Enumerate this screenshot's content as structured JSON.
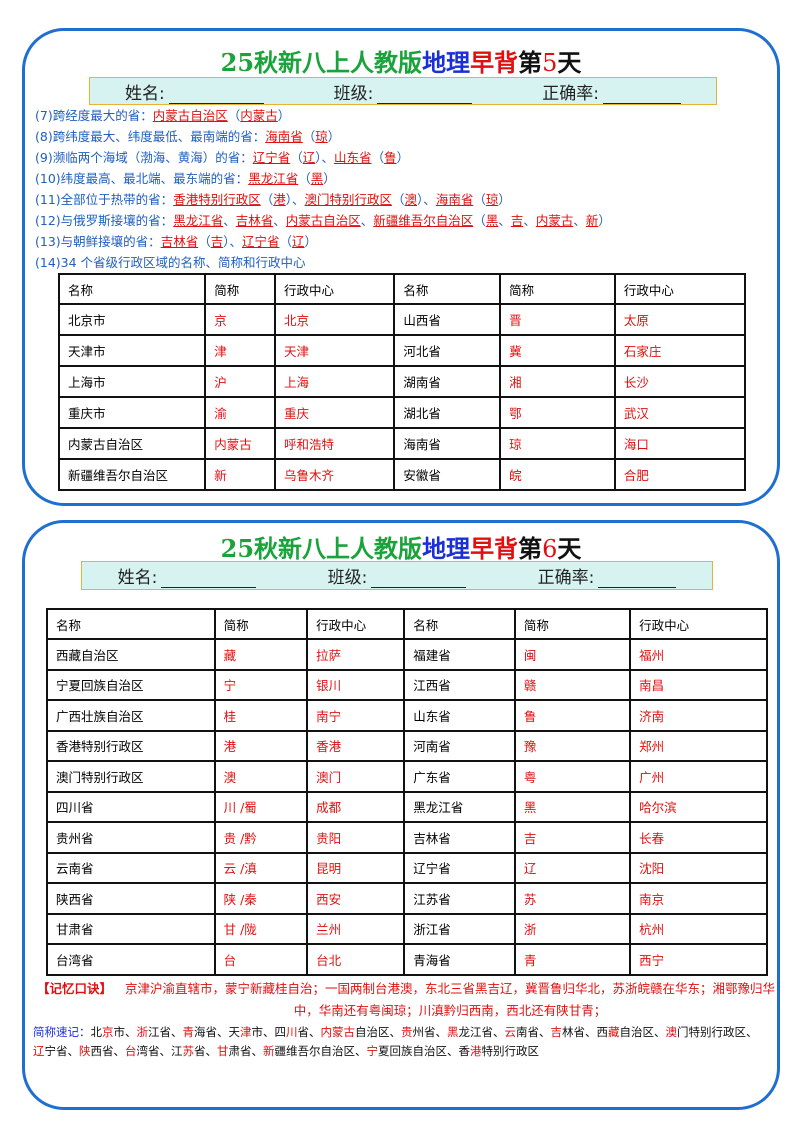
{
  "cards": [
    {
      "title": [
        "25秋新八上人教版",
        "地理",
        "早背",
        "第",
        "5",
        "天"
      ],
      "info": [
        "姓名:",
        "班级:",
        "正确率:"
      ],
      "items": [
        {
          "number": "(7)",
          "parts": [
            "跨经度最大的省：",
            "内蒙古自治区",
            "（",
            "内蒙古",
            "）"
          ]
        },
        {
          "number": "(8)",
          "parts": [
            "跨纬度最大、纬度最低、最南端的省：",
            "海南省",
            "（",
            "琼",
            "）"
          ]
        },
        {
          "number": "(9)",
          "parts": [
            "濒临两个海域（渤海、黄海）的省：",
            "辽宁省",
            "（",
            "辽",
            "）、",
            "山东省",
            "（",
            "鲁",
            "）"
          ]
        },
        {
          "number": "(10)",
          "parts": [
            "纬度最高、最北端、最东端的省：",
            "黑龙江省",
            "（",
            "黑",
            "）"
          ]
        },
        {
          "number": "(11)",
          "parts": [
            "全部位于热带的省：",
            "香港特别行政区",
            "（",
            "港",
            "）、",
            "澳门特别行政区",
            "（",
            "澳",
            "）、",
            "海南省",
            "（",
            "琼",
            "）"
          ]
        },
        {
          "number": "(12)",
          "parts": [
            "与俄罗斯接壤的省：",
            "黑龙江省",
            "、",
            "吉林省",
            "、",
            "内蒙古自治区",
            "、",
            "新疆维吾尔自治区",
            "（",
            "黑",
            "、",
            "吉",
            "、",
            "内蒙古",
            "、",
            "新",
            "）"
          ]
        },
        {
          "number": "(13)",
          "parts": [
            "与朝鲜接壤的省：",
            "吉林省",
            "（",
            "吉",
            "）、",
            "辽宁省",
            "（",
            "辽",
            "）"
          ]
        },
        {
          "number": "(14)",
          "parts": [
            "34 个省级行政区域的名称、简称和行政中心"
          ]
        }
      ],
      "table": {
        "header": [
          "名称",
          "简称",
          "行政中心",
          "名称",
          "简称",
          "行政中心"
        ],
        "rows": [
          [
            "北京市",
            "京",
            "北京",
            "山西省",
            "晋",
            "太原"
          ],
          [
            "天津市",
            "津",
            "天津",
            "河北省",
            "冀",
            "石家庄"
          ],
          [
            "上海市",
            "沪",
            "上海",
            "湖南省",
            "湘",
            "长沙"
          ],
          [
            "重庆市",
            "渝",
            "重庆",
            "湖北省",
            "鄂",
            "武汉"
          ],
          [
            "内蒙古自治区",
            "内蒙古",
            "呼和浩特",
            "海南省",
            "琼",
            "海口"
          ],
          [
            "新疆维吾尔自治区",
            "新",
            "乌鲁木齐",
            "安徽省",
            "皖",
            "合肥"
          ]
        ]
      }
    },
    {
      "title": [
        "25秋新八上人教版",
        "地理",
        "早背",
        "第",
        "6",
        "天"
      ],
      "info": [
        "姓名:",
        "班级:",
        "正确率:"
      ],
      "table": {
        "header": [
          "名称",
          "简称",
          "行政中心",
          "名称",
          "简称",
          "行政中心"
        ],
        "rows": [
          [
            "西藏自治区",
            "藏",
            "拉萨",
            "福建省",
            "闽",
            "福州"
          ],
          [
            "宁夏回族自治区",
            "宁",
            "银川",
            "江西省",
            "赣",
            "南昌"
          ],
          [
            "广西壮族自治区",
            "桂",
            "南宁",
            "山东省",
            "鲁",
            "济南"
          ],
          [
            "香港特别行政区",
            "港",
            "香港",
            "河南省",
            "豫",
            "郑州"
          ],
          [
            "澳门特别行政区",
            "澳",
            "澳门",
            "广东省",
            "粤",
            "广州"
          ],
          [
            "四川省",
            "川 /蜀",
            "成都",
            "黑龙江省",
            "黑",
            "哈尔滨"
          ],
          [
            "贵州省",
            "贵 /黔",
            "贵阳",
            "吉林省",
            "吉",
            "长春"
          ],
          [
            "云南省",
            "云 /滇",
            "昆明",
            "辽宁省",
            "辽",
            "沈阳"
          ],
          [
            "陕西省",
            "陕 /秦",
            "西安",
            "江苏省",
            "苏",
            "南京"
          ],
          [
            "甘肃省",
            "甘 /陇",
            "兰州",
            "浙江省",
            "浙",
            "杭州"
          ],
          [
            "台湾省",
            "台",
            "台北",
            "青海省",
            "青",
            "西宁"
          ]
        ]
      },
      "mnemonic": {
        "label": "【记忆口诀】",
        "text": "京津沪渝直辖市，蒙宁新藏桂自治；一国两制台港澳，东北三省黑吉辽，冀晋鲁归华北，苏浙皖赣在华东；湘鄂豫归华中，华南还有粤闽琼；川滇黔归西南，西北还有陕甘青；"
      },
      "shorthand": {
        "label": "简称速记：",
        "entries": [
          {
            "text": "北京市、",
            "key": "京"
          },
          {
            "text": "浙江省、",
            "key": "浙"
          },
          {
            "text": "青海省、",
            "key": "青"
          },
          {
            "text": "天津市、",
            "key": "津"
          },
          {
            "text": "四川省、",
            "key": "川"
          },
          {
            "text": "内蒙古自治区、",
            "key": "内蒙古"
          },
          {
            "text": "贵州省、",
            "key": "贵"
          },
          {
            "text": "黑龙江省、",
            "key": "黑"
          },
          {
            "text": "云南省、",
            "key": "云"
          },
          {
            "text": "吉林省、",
            "key": "吉"
          },
          {
            "text": "西藏自治区、",
            "key": "藏"
          },
          {
            "text": "澳门特别行政区、",
            "key": "澳"
          },
          {
            "text": "辽宁省、",
            "key": "辽"
          },
          {
            "text": "陕西省、",
            "key": "陕"
          },
          {
            "text": "台湾省、",
            "key": "台"
          },
          {
            "text": "江苏省、",
            "key": "苏"
          },
          {
            "text": "甘肃省、",
            "key": "甘"
          },
          {
            "text": "新疆维吾尔自治区、",
            "key": "新"
          },
          {
            "text": "宁夏回族自治区、",
            "key": "宁"
          },
          {
            "text": "香港特别行政区",
            "key": "港"
          }
        ]
      }
    }
  ]
}
